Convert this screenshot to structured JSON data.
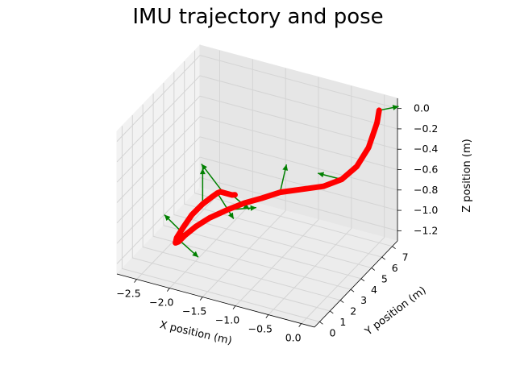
{
  "chart_data": {
    "type": "line",
    "title": "IMU trajectory and pose",
    "xlabel": "X position (m)",
    "ylabel": "Y position (m)",
    "zlabel": "Z position (m)",
    "x_ticks": [
      "−2.5",
      "−2.0",
      "−1.5",
      "−1.0",
      "−0.5",
      "0.0"
    ],
    "y_ticks": [
      "0",
      "1",
      "2",
      "3",
      "4",
      "5",
      "6",
      "7"
    ],
    "z_ticks": [
      "0.0",
      "−0.2",
      "−0.4",
      "−0.6",
      "−0.8",
      "−1.0",
      "−1.2"
    ],
    "xlim": [
      -2.8,
      0.2
    ],
    "ylim": [
      -0.5,
      7.5
    ],
    "zlim": [
      -1.3,
      0.1
    ],
    "grid": true,
    "colors": {
      "trajectory": "#ff0000",
      "pose_arrows": "#008000",
      "pane": "#f2f2f2",
      "grid": "#d4d4d4"
    },
    "series": [
      {
        "kind": "trajectory",
        "x": [
          0.0,
          0.0,
          -0.05,
          -0.15,
          -0.3,
          -0.5,
          -0.75,
          -1.0,
          -1.2,
          -1.4,
          -1.6,
          -1.8,
          -1.95,
          -2.05,
          -2.1,
          -2.1,
          -2.05,
          -1.95,
          -1.85,
          -1.75,
          -1.7,
          -1.7,
          -1.75,
          -1.8,
          -1.85,
          -1.9,
          -1.95,
          -2.0
        ],
        "y": [
          7.0,
          6.8,
          6.3,
          5.8,
          5.3,
          4.8,
          4.3,
          3.8,
          3.3,
          2.9,
          2.5,
          2.1,
          1.7,
          1.3,
          1.0,
          0.7,
          0.5,
          0.5,
          0.7,
          1.1,
          1.6,
          2.2,
          2.8,
          3.4,
          4.0,
          4.6,
          5.2,
          5.8
        ],
        "z": [
          0.0,
          -0.1,
          -0.3,
          -0.45,
          -0.55,
          -0.6,
          -0.62,
          -0.64,
          -0.68,
          -0.72,
          -0.78,
          -0.85,
          -0.92,
          -0.98,
          -1.02,
          -1.0,
          -0.92,
          -0.8,
          -0.68,
          -0.6,
          -0.58,
          -0.6,
          -0.66,
          -0.74,
          -0.82,
          -0.9,
          -0.98,
          -1.05
        ]
      },
      {
        "kind": "pose_arrows",
        "origins": [
          [
            0.0,
            7.0,
            0.0
          ],
          [
            -0.3,
            5.3,
            -0.55
          ],
          [
            -1.0,
            3.8,
            -0.64
          ],
          [
            -1.6,
            2.5,
            -0.78
          ],
          [
            -2.05,
            1.3,
            -0.98
          ],
          [
            -2.05,
            0.5,
            -0.92
          ],
          [
            -1.75,
            1.1,
            -0.6
          ],
          [
            -1.7,
            2.2,
            -0.6
          ],
          [
            -1.8,
            3.4,
            -0.74
          ],
          [
            -1.95,
            5.2,
            -0.98
          ]
        ],
        "vectors": [
          [
            0.25,
            0.3,
            0.05
          ],
          [
            -0.3,
            -0.4,
            0.05
          ],
          [
            0.05,
            0.3,
            0.25
          ],
          [
            0.35,
            0.6,
            0.02
          ],
          [
            -0.25,
            -0.4,
            0.2
          ],
          [
            0.25,
            0.5,
            -0.2
          ],
          [
            0.0,
            0.0,
            0.35
          ],
          [
            0.2,
            0.3,
            -0.25
          ],
          [
            -0.3,
            -0.2,
            0.25
          ],
          [
            0.2,
            0.4,
            -0.15
          ]
        ]
      }
    ]
  }
}
